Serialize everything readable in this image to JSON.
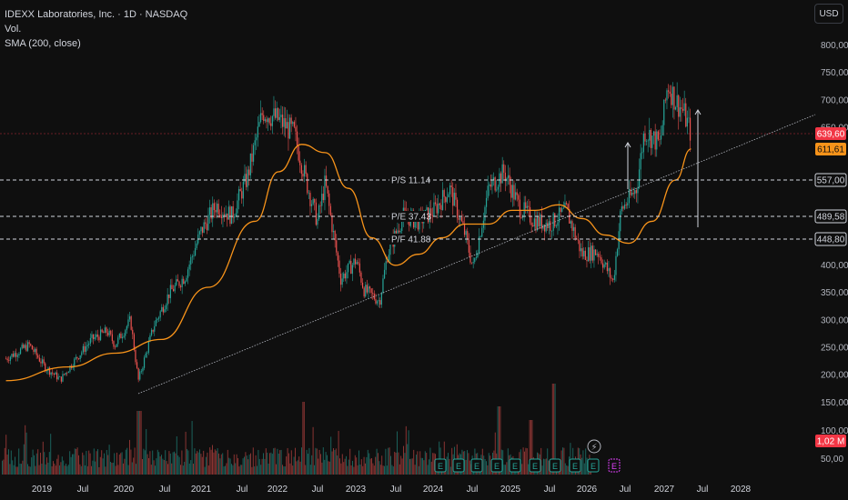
{
  "legend": {
    "symbol": "IDEXX Laboratories, Inc. · 1D · NASDAQ",
    "vol": "Vol.",
    "sma": "SMA (200, close)"
  },
  "currency_button": "USD",
  "colors": {
    "background": "#0f0f0f",
    "up": "#26a69a",
    "down": "#ef5350",
    "sma": "#f7931a",
    "trendline": "#b2b5be",
    "price_badge": "#f23645",
    "sma_badge": "#f7931a",
    "earnings": "#26a69a"
  },
  "chart_data": {
    "type": "candlestick",
    "title": "IDEXX Laboratories, Inc. · 1D · NASDAQ",
    "currency": "USD",
    "ylim": [
      50,
      830
    ],
    "y_ticks": [
      "800,00",
      "750,00",
      "700,00",
      "650,00",
      "400,00",
      "350,00",
      "300,00",
      "250,00",
      "200,00",
      "150,00",
      "100,00",
      "50,00"
    ],
    "x_ticks": [
      "2019",
      "Jul",
      "2020",
      "Jul",
      "2021",
      "Jul",
      "2022",
      "Jul",
      "2023",
      "Jul",
      "2024",
      "Jul",
      "2025",
      "Jul",
      "2026",
      "Jul",
      "2027",
      "Jul",
      "2028"
    ],
    "price_path": [
      {
        "x": "2018-10",
        "y": 230
      },
      {
        "x": "2019-01",
        "y": 255
      },
      {
        "x": "2019-03",
        "y": 215
      },
      {
        "x": "2019-05",
        "y": 192
      },
      {
        "x": "2019-07",
        "y": 230
      },
      {
        "x": "2019-09",
        "y": 265
      },
      {
        "x": "2019-11",
        "y": 280
      },
      {
        "x": "2019-12",
        "y": 255
      },
      {
        "x": "2020-02",
        "y": 300
      },
      {
        "x": "2020-03",
        "y": 190
      },
      {
        "x": "2020-05",
        "y": 290
      },
      {
        "x": "2020-07",
        "y": 350
      },
      {
        "x": "2020-09",
        "y": 380
      },
      {
        "x": "2020-11",
        "y": 460
      },
      {
        "x": "2021-01",
        "y": 510
      },
      {
        "x": "2021-03",
        "y": 490
      },
      {
        "x": "2021-05",
        "y": 560
      },
      {
        "x": "2021-07",
        "y": 680
      },
      {
        "x": "2021-09",
        "y": 665
      },
      {
        "x": "2021-11",
        "y": 640
      },
      {
        "x": "2022-01",
        "y": 530
      },
      {
        "x": "2022-02",
        "y": 480
      },
      {
        "x": "2022-03",
        "y": 550
      },
      {
        "x": "2022-05",
        "y": 375
      },
      {
        "x": "2022-07",
        "y": 410
      },
      {
        "x": "2022-08",
        "y": 355
      },
      {
        "x": "2022-10",
        "y": 335
      },
      {
        "x": "2022-11",
        "y": 420
      },
      {
        "x": "2023-01",
        "y": 490
      },
      {
        "x": "2023-03",
        "y": 480
      },
      {
        "x": "2023-05",
        "y": 500
      },
      {
        "x": "2023-07",
        "y": 540
      },
      {
        "x": "2023-09",
        "y": 455
      },
      {
        "x": "2023-10",
        "y": 395
      },
      {
        "x": "2023-12",
        "y": 540
      },
      {
        "x": "2024-02",
        "y": 570
      },
      {
        "x": "2024-04",
        "y": 505
      },
      {
        "x": "2024-06",
        "y": 480
      },
      {
        "x": "2024-08",
        "y": 475
      },
      {
        "x": "2024-10",
        "y": 500
      },
      {
        "x": "2024-12",
        "y": 420
      },
      {
        "x": "2025-02",
        "y": 425
      },
      {
        "x": "2025-04",
        "y": 370
      },
      {
        "x": "2025-05",
        "y": 500
      },
      {
        "x": "2025-07",
        "y": 540
      },
      {
        "x": "2025-08",
        "y": 645
      },
      {
        "x": "2025-10",
        "y": 620
      },
      {
        "x": "2025-11",
        "y": 730
      },
      {
        "x": "2025-12",
        "y": 700
      },
      {
        "x": "2026-01",
        "y": 680
      },
      {
        "x": "2026-02",
        "y": 639.6
      }
    ],
    "sma200_path": [
      {
        "x": "2018-10",
        "y": 190
      },
      {
        "x": "2019-06",
        "y": 215
      },
      {
        "x": "2019-12",
        "y": 240
      },
      {
        "x": "2020-06",
        "y": 265
      },
      {
        "x": "2020-12",
        "y": 360
      },
      {
        "x": "2021-06",
        "y": 480
      },
      {
        "x": "2021-09",
        "y": 570
      },
      {
        "x": "2021-12",
        "y": 620
      },
      {
        "x": "2022-03",
        "y": 605
      },
      {
        "x": "2022-06",
        "y": 540
      },
      {
        "x": "2022-09",
        "y": 450
      },
      {
        "x": "2022-12",
        "y": 400
      },
      {
        "x": "2023-03",
        "y": 420
      },
      {
        "x": "2023-06",
        "y": 450
      },
      {
        "x": "2023-09",
        "y": 475
      },
      {
        "x": "2023-12",
        "y": 475
      },
      {
        "x": "2024-03",
        "y": 500
      },
      {
        "x": "2024-06",
        "y": 500
      },
      {
        "x": "2024-09",
        "y": 510
      },
      {
        "x": "2024-12",
        "y": 485
      },
      {
        "x": "2025-03",
        "y": 455
      },
      {
        "x": "2025-06",
        "y": 440
      },
      {
        "x": "2025-09",
        "y": 480
      },
      {
        "x": "2025-12",
        "y": 555
      },
      {
        "x": "2026-02",
        "y": 611.61
      }
    ],
    "trendline": {
      "from": {
        "x": "2020-03",
        "y": 170
      },
      "to": {
        "x": "2028-05",
        "y": 720
      }
    },
    "levels": [
      {
        "label": "P/S 11.14",
        "value": 557.0,
        "badge": "557,00"
      },
      {
        "label": "P/E 37.43",
        "value": 489.58,
        "badge": "489,58"
      },
      {
        "label": "P/F 41.88",
        "value": 448.8,
        "badge": "448,80"
      }
    ],
    "arrows": [
      {
        "x": "2026-09",
        "from": 560,
        "to": 650
      },
      {
        "x": "2027-07",
        "from": 485,
        "to": 690
      }
    ],
    "last_price": {
      "value": 639.6,
      "badge": "639,60"
    },
    "sma_last": {
      "value": 611.61,
      "badge": "611,61"
    },
    "volume_last": "1,02 M"
  }
}
